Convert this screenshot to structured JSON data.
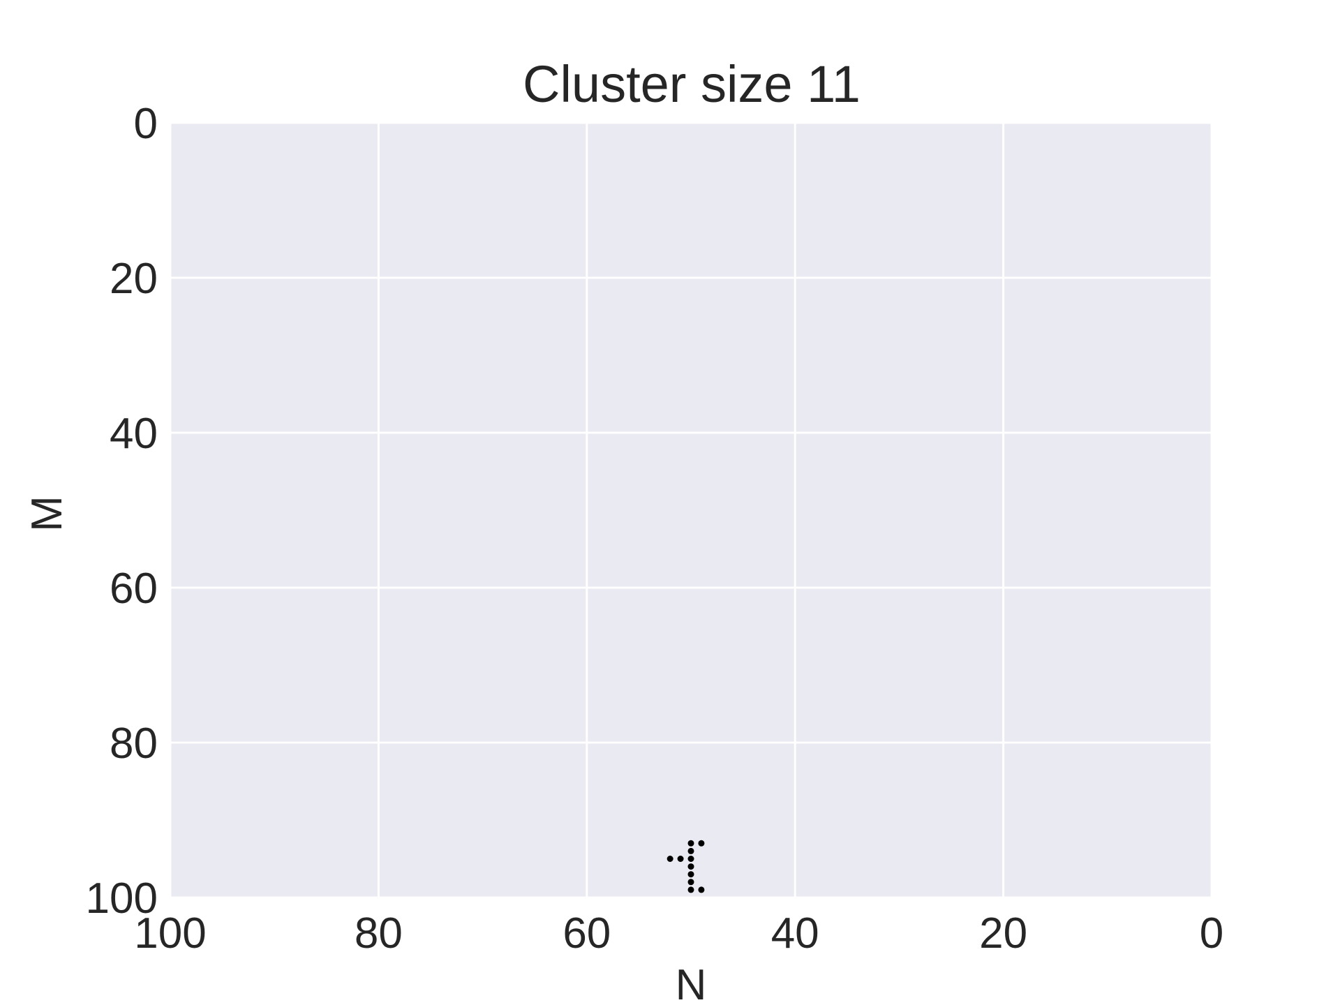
{
  "chart_data": {
    "type": "scatter",
    "title": "Cluster size 11",
    "xlabel": "N",
    "ylabel": "M",
    "xlim": [
      100,
      0
    ],
    "ylim": [
      100,
      0
    ],
    "x_inverted": true,
    "y_inverted": true,
    "xticks": [
      100,
      80,
      60,
      40,
      20,
      0
    ],
    "yticks": [
      0,
      20,
      40,
      60,
      80,
      100
    ],
    "grid": true,
    "colors": {
      "plot_background": "#EAEAF2",
      "grid": "#FFFFFF",
      "text": "#262626",
      "points": "#000000"
    },
    "series": [
      {
        "points": [
          [
            49,
            93
          ],
          [
            50,
            93
          ],
          [
            50,
            94
          ],
          [
            52,
            95
          ],
          [
            51,
            95
          ],
          [
            50,
            95
          ],
          [
            50,
            96
          ],
          [
            50,
            97
          ],
          [
            50,
            98
          ],
          [
            50,
            99
          ],
          [
            49,
            99
          ]
        ]
      }
    ]
  }
}
